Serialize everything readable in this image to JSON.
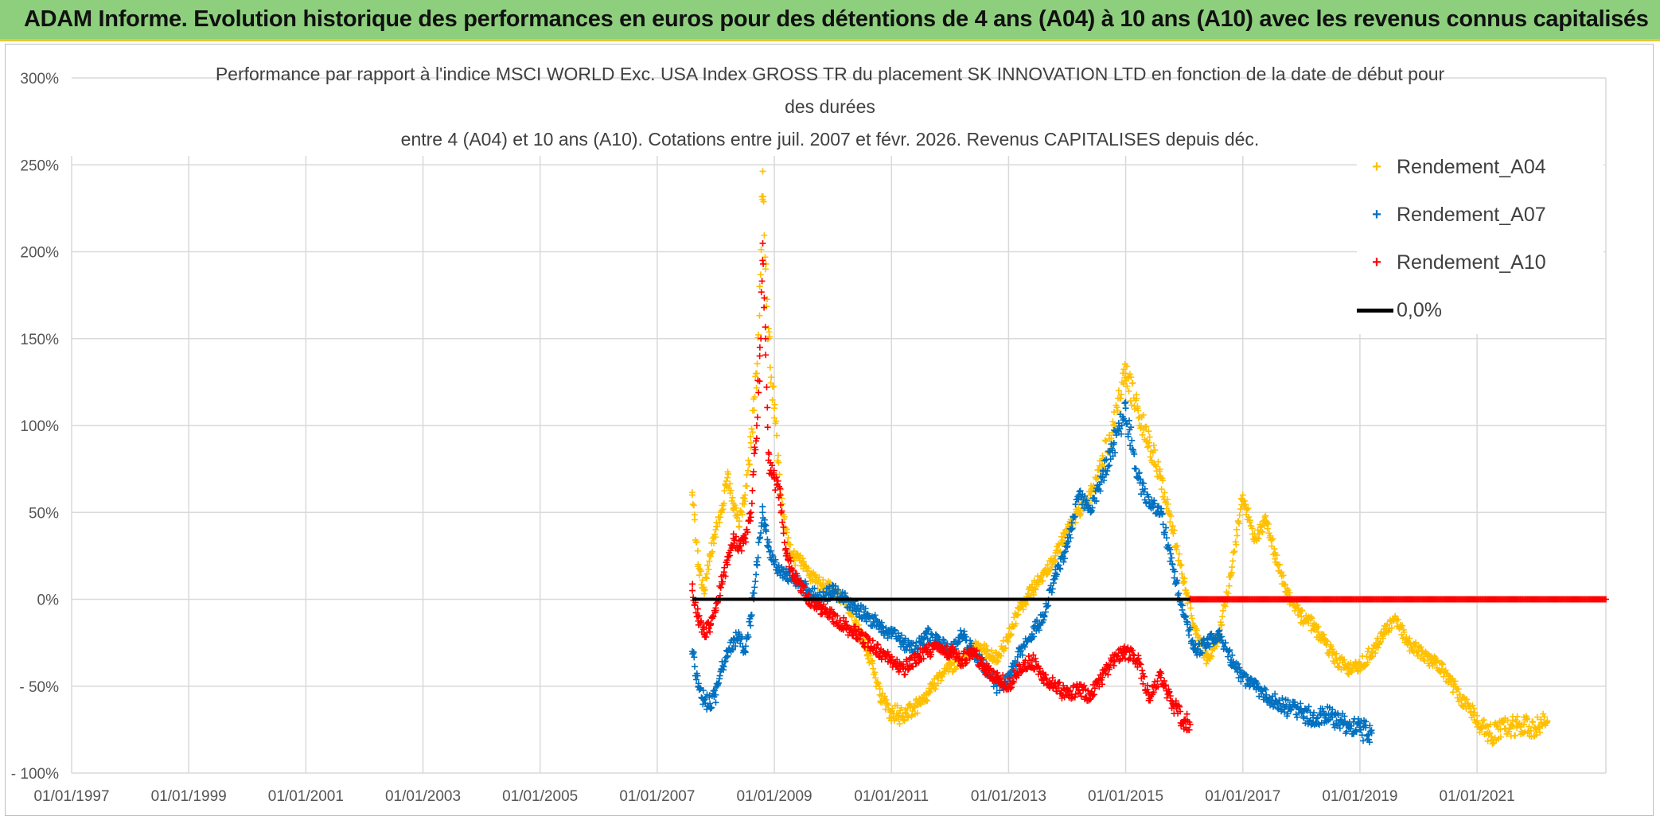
{
  "banner": {
    "title": "ADAM Informe. Evolution historique des performances en euros pour des détentions de 4 ans (A04) à 10 ans (A10) avec les revenus connus capitalisés"
  },
  "chart_data": {
    "type": "scatter",
    "title_lines": [
      "Performance par rapport à l'indice MSCI WORLD Exc. USA Index GROSS TR  du placement SK INNOVATION LTD en fonction de la date de début pour",
      "des durées",
      "entre 4 (A04) et 10 ans (A10). Cotations entre juil. 2007 et févr. 2026. Revenus CAPITALISES depuis déc."
    ],
    "ylim": [
      -100,
      300
    ],
    "yticks": [
      300,
      250,
      200,
      150,
      100,
      50,
      0,
      -50,
      -100
    ],
    "ytick_labels": [
      "300%",
      "250%",
      "200%",
      "150%",
      "100%",
      "50%",
      "0%",
      "- 50%",
      "- 100%"
    ],
    "xlim": [
      1997.0,
      2023.2
    ],
    "xticks": [
      1997,
      1999,
      2001,
      2003,
      2005,
      2007,
      2009,
      2011,
      2013,
      2015,
      2017,
      2019,
      2021
    ],
    "xtick_labels": [
      "01/01/1997",
      "01/01/1999",
      "01/01/2001",
      "01/01/2003",
      "01/01/2005",
      "01/01/2007",
      "01/01/2009",
      "01/01/2011",
      "01/01/2013",
      "01/01/2015",
      "01/01/2017",
      "01/01/2019",
      "01/01/2021"
    ],
    "legend_position": "top-right",
    "series": [
      {
        "name": "Rendement_A04",
        "color": "#ffc000",
        "marker": "+",
        "points": [
          [
            2007.6,
            60
          ],
          [
            2007.7,
            20
          ],
          [
            2007.8,
            5
          ],
          [
            2007.9,
            25
          ],
          [
            2008.0,
            40
          ],
          [
            2008.1,
            50
          ],
          [
            2008.2,
            70
          ],
          [
            2008.3,
            55
          ],
          [
            2008.4,
            45
          ],
          [
            2008.5,
            60
          ],
          [
            2008.6,
            90
          ],
          [
            2008.7,
            130
          ],
          [
            2008.75,
            180
          ],
          [
            2008.8,
            230
          ],
          [
            2008.85,
            190
          ],
          [
            2008.9,
            150
          ],
          [
            2009.0,
            110
          ],
          [
            2009.1,
            60
          ],
          [
            2009.2,
            40
          ],
          [
            2009.3,
            25
          ],
          [
            2009.5,
            20
          ],
          [
            2009.7,
            10
          ],
          [
            2010.0,
            5
          ],
          [
            2010.2,
            0
          ],
          [
            2010.4,
            -15
          ],
          [
            2010.6,
            -30
          ],
          [
            2010.8,
            -55
          ],
          [
            2011.0,
            -65
          ],
          [
            2011.2,
            -68
          ],
          [
            2011.4,
            -62
          ],
          [
            2011.6,
            -55
          ],
          [
            2011.8,
            -45
          ],
          [
            2012.0,
            -40
          ],
          [
            2012.2,
            -35
          ],
          [
            2012.4,
            -28
          ],
          [
            2012.6,
            -30
          ],
          [
            2012.8,
            -35
          ],
          [
            2013.0,
            -20
          ],
          [
            2013.2,
            -5
          ],
          [
            2013.4,
            5
          ],
          [
            2013.6,
            15
          ],
          [
            2013.8,
            25
          ],
          [
            2014.0,
            40
          ],
          [
            2014.2,
            50
          ],
          [
            2014.4,
            60
          ],
          [
            2014.6,
            80
          ],
          [
            2014.8,
            100
          ],
          [
            2015.0,
            130
          ],
          [
            2015.2,
            110
          ],
          [
            2015.4,
            90
          ],
          [
            2015.6,
            70
          ],
          [
            2015.8,
            40
          ],
          [
            2016.0,
            10
          ],
          [
            2016.2,
            -20
          ],
          [
            2016.4,
            -35
          ],
          [
            2016.6,
            -20
          ],
          [
            2016.8,
            15
          ],
          [
            2017.0,
            60
          ],
          [
            2017.2,
            35
          ],
          [
            2017.4,
            45
          ],
          [
            2017.6,
            20
          ],
          [
            2017.8,
            0
          ],
          [
            2018.0,
            -10
          ],
          [
            2018.2,
            -15
          ],
          [
            2018.4,
            -25
          ],
          [
            2018.6,
            -35
          ],
          [
            2018.8,
            -40
          ],
          [
            2019.0,
            -38
          ],
          [
            2019.2,
            -30
          ],
          [
            2019.4,
            -20
          ],
          [
            2019.6,
            -10
          ],
          [
            2019.8,
            -25
          ],
          [
            2020.0,
            -30
          ],
          [
            2020.2,
            -35
          ],
          [
            2020.4,
            -40
          ],
          [
            2020.6,
            -50
          ],
          [
            2020.8,
            -60
          ],
          [
            2021.0,
            -70
          ],
          [
            2021.2,
            -78
          ],
          [
            2021.4,
            -75
          ],
          [
            2021.6,
            -73
          ],
          [
            2021.8,
            -72
          ],
          [
            2022.0,
            -74
          ],
          [
            2022.2,
            -70
          ]
        ]
      },
      {
        "name": "Rendement_A07",
        "color": "#0070c0",
        "marker": "+",
        "points": [
          [
            2007.6,
            -30
          ],
          [
            2007.7,
            -50
          ],
          [
            2007.8,
            -58
          ],
          [
            2007.9,
            -60
          ],
          [
            2008.0,
            -55
          ],
          [
            2008.1,
            -40
          ],
          [
            2008.2,
            -30
          ],
          [
            2008.3,
            -25
          ],
          [
            2008.4,
            -20
          ],
          [
            2008.5,
            -30
          ],
          [
            2008.6,
            -10
          ],
          [
            2008.7,
            20
          ],
          [
            2008.8,
            50
          ],
          [
            2008.85,
            40
          ],
          [
            2008.9,
            30
          ],
          [
            2009.0,
            20
          ],
          [
            2009.2,
            15
          ],
          [
            2009.4,
            10
          ],
          [
            2009.6,
            5
          ],
          [
            2009.8,
            0
          ],
          [
            2010.0,
            5
          ],
          [
            2010.2,
            0
          ],
          [
            2010.4,
            -5
          ],
          [
            2010.6,
            -10
          ],
          [
            2010.8,
            -15
          ],
          [
            2011.0,
            -20
          ],
          [
            2011.2,
            -25
          ],
          [
            2011.4,
            -30
          ],
          [
            2011.6,
            -20
          ],
          [
            2011.8,
            -25
          ],
          [
            2012.0,
            -30
          ],
          [
            2012.2,
            -20
          ],
          [
            2012.4,
            -30
          ],
          [
            2012.6,
            -40
          ],
          [
            2012.8,
            -50
          ],
          [
            2013.0,
            -45
          ],
          [
            2013.2,
            -30
          ],
          [
            2013.4,
            -20
          ],
          [
            2013.6,
            -10
          ],
          [
            2013.8,
            15
          ],
          [
            2014.0,
            30
          ],
          [
            2014.2,
            60
          ],
          [
            2014.4,
            50
          ],
          [
            2014.6,
            70
          ],
          [
            2014.8,
            90
          ],
          [
            2015.0,
            110
          ],
          [
            2015.2,
            70
          ],
          [
            2015.4,
            55
          ],
          [
            2015.6,
            50
          ],
          [
            2015.8,
            20
          ],
          [
            2016.0,
            -10
          ],
          [
            2016.2,
            -30
          ],
          [
            2016.4,
            -25
          ],
          [
            2016.6,
            -20
          ],
          [
            2016.8,
            -35
          ],
          [
            2017.0,
            -45
          ],
          [
            2017.2,
            -50
          ],
          [
            2017.4,
            -55
          ],
          [
            2017.6,
            -60
          ],
          [
            2017.8,
            -63
          ],
          [
            2018.0,
            -65
          ],
          [
            2018.2,
            -68
          ],
          [
            2018.4,
            -66
          ],
          [
            2018.6,
            -70
          ],
          [
            2018.8,
            -72
          ],
          [
            2019.0,
            -75
          ],
          [
            2019.2,
            -77
          ]
        ]
      },
      {
        "name": "Rendement_A10",
        "color": "#ff0000",
        "marker": "+",
        "points": [
          [
            2007.6,
            5
          ],
          [
            2007.7,
            -10
          ],
          [
            2007.8,
            -20
          ],
          [
            2007.9,
            -15
          ],
          [
            2008.0,
            -5
          ],
          [
            2008.1,
            10
          ],
          [
            2008.2,
            20
          ],
          [
            2008.3,
            35
          ],
          [
            2008.4,
            30
          ],
          [
            2008.5,
            35
          ],
          [
            2008.6,
            50
          ],
          [
            2008.7,
            100
          ],
          [
            2008.75,
            140
          ],
          [
            2008.8,
            195
          ],
          [
            2008.85,
            150
          ],
          [
            2008.9,
            80
          ],
          [
            2009.0,
            70
          ],
          [
            2009.1,
            60
          ],
          [
            2009.2,
            25
          ],
          [
            2009.4,
            10
          ],
          [
            2009.6,
            0
          ],
          [
            2009.8,
            -5
          ],
          [
            2010.0,
            -10
          ],
          [
            2010.2,
            -15
          ],
          [
            2010.4,
            -20
          ],
          [
            2010.6,
            -25
          ],
          [
            2010.8,
            -30
          ],
          [
            2011.0,
            -35
          ],
          [
            2011.2,
            -40
          ],
          [
            2011.4,
            -35
          ],
          [
            2011.6,
            -30
          ],
          [
            2011.8,
            -28
          ],
          [
            2012.0,
            -30
          ],
          [
            2012.2,
            -35
          ],
          [
            2012.4,
            -30
          ],
          [
            2012.6,
            -40
          ],
          [
            2012.8,
            -45
          ],
          [
            2013.0,
            -50
          ],
          [
            2013.2,
            -40
          ],
          [
            2013.4,
            -35
          ],
          [
            2013.6,
            -45
          ],
          [
            2013.8,
            -50
          ],
          [
            2014.0,
            -55
          ],
          [
            2014.2,
            -52
          ],
          [
            2014.4,
            -55
          ],
          [
            2014.6,
            -45
          ],
          [
            2014.8,
            -35
          ],
          [
            2015.0,
            -30
          ],
          [
            2015.2,
            -35
          ],
          [
            2015.4,
            -55
          ],
          [
            2015.6,
            -45
          ],
          [
            2015.8,
            -60
          ],
          [
            2016.0,
            -70
          ],
          [
            2016.1,
            -72
          ]
        ],
        "flat_zero_from": 2016.1,
        "flat_zero_to": 2023.2
      },
      {
        "name": "0,0%",
        "color": "#000000",
        "type": "line",
        "points": [
          [
            2007.6,
            0
          ],
          [
            2016.1,
            0
          ]
        ]
      }
    ]
  }
}
